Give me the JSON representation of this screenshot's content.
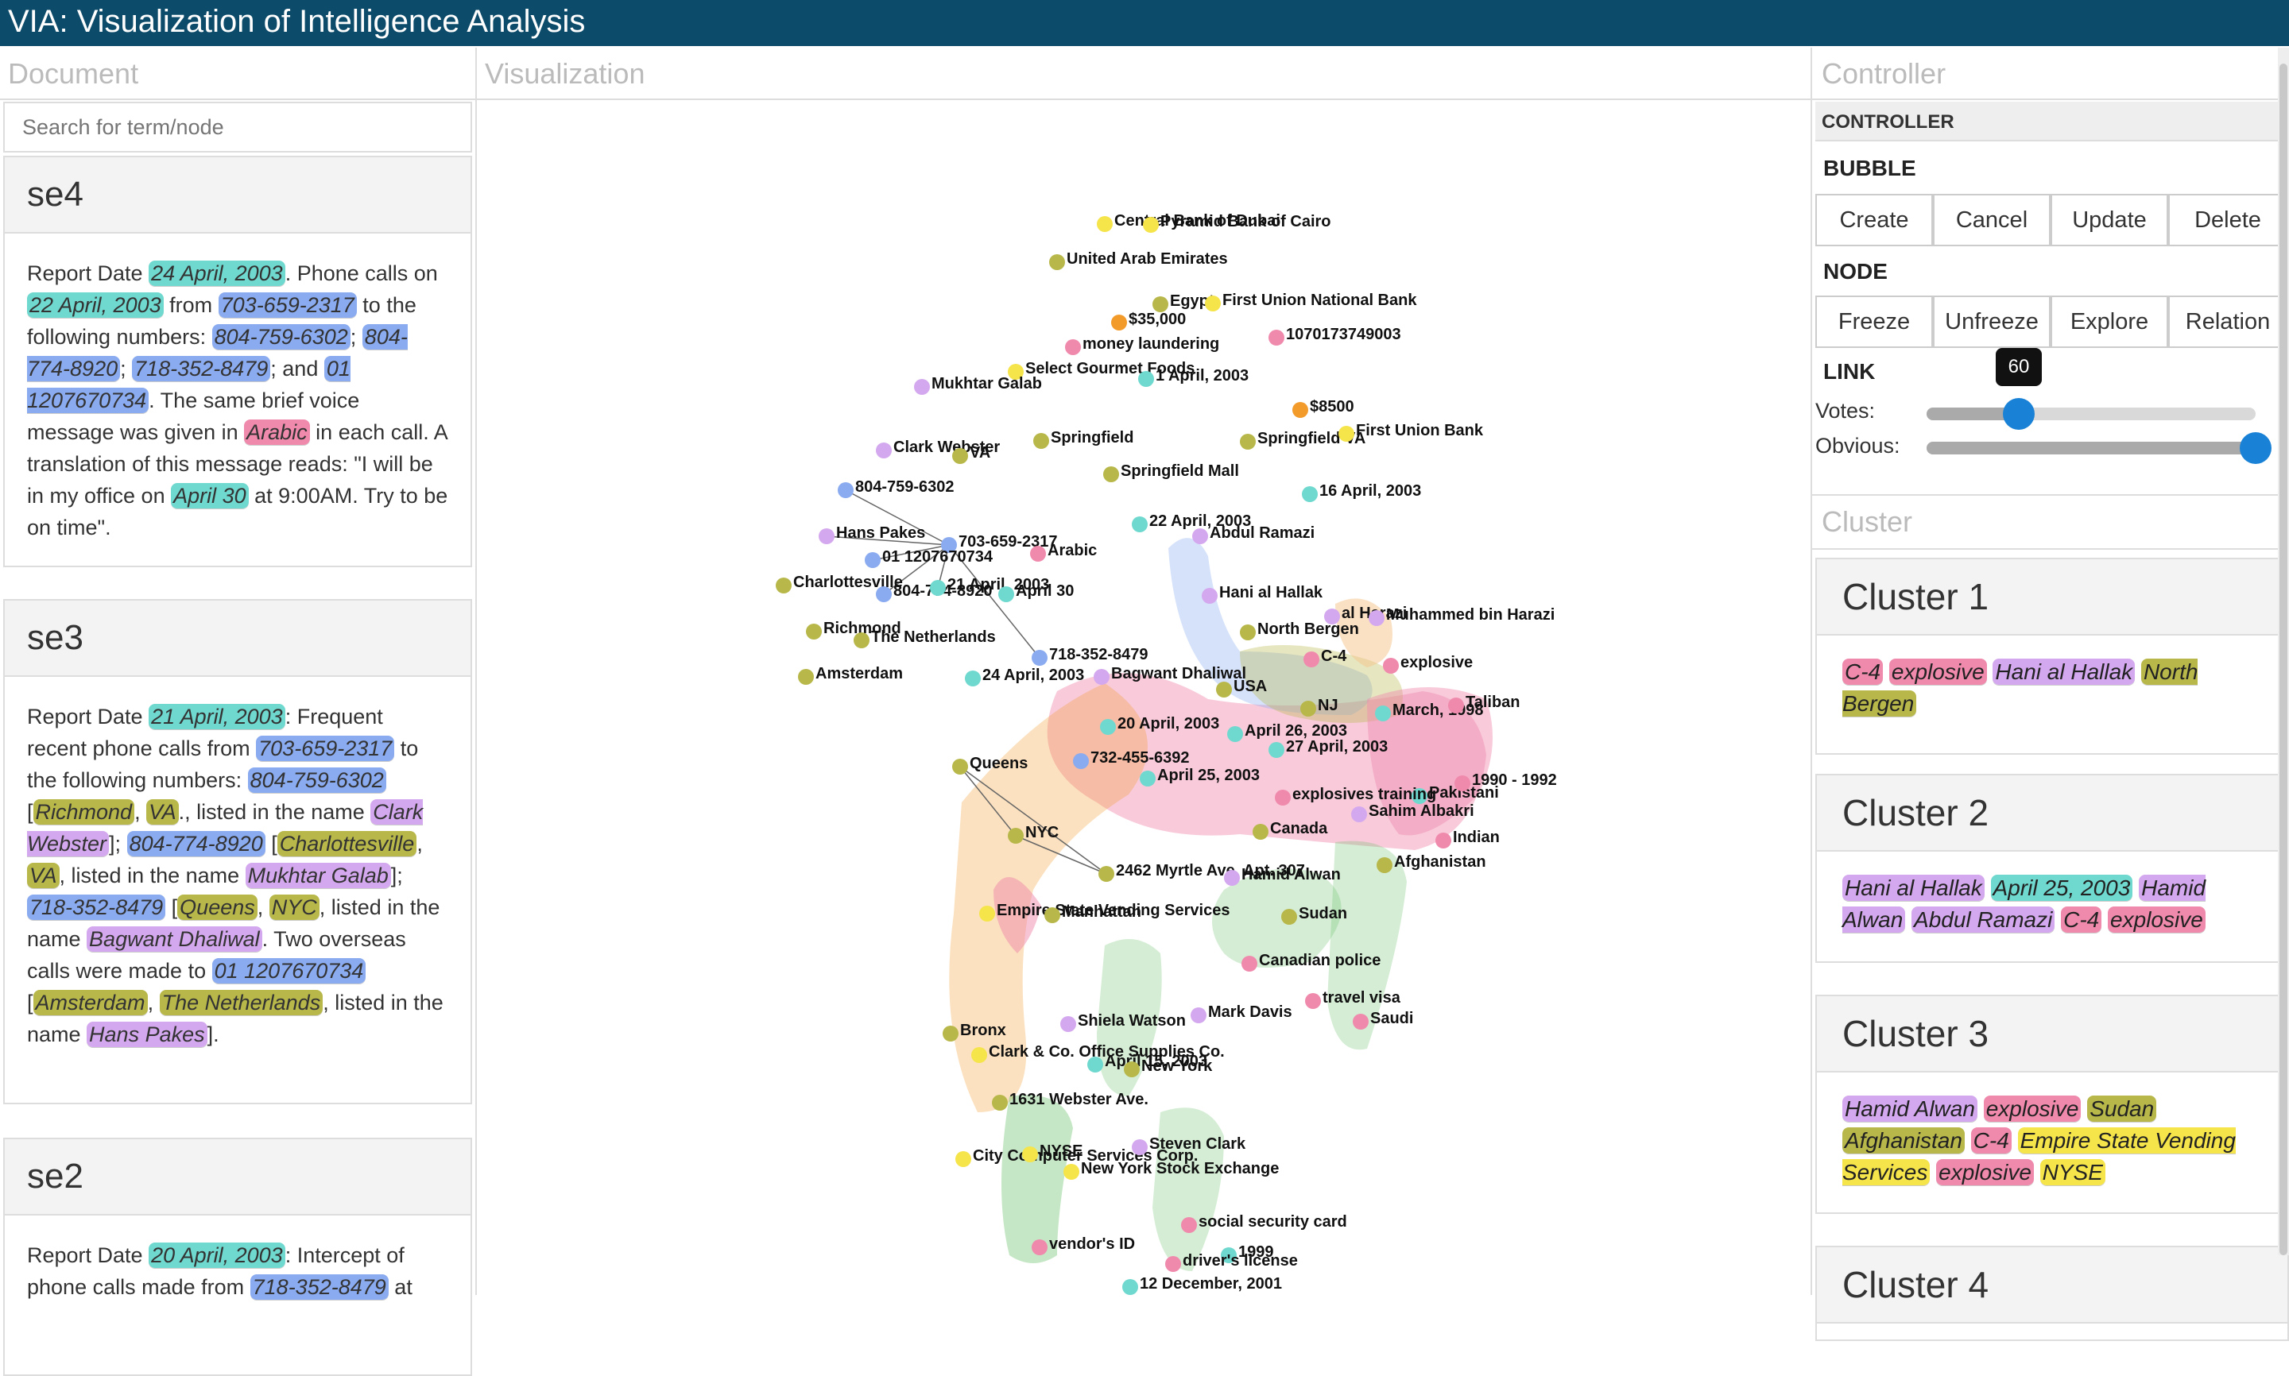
{
  "app": {
    "title": "VIA: Visualization of Intelligence Analysis"
  },
  "columns": {
    "document": "Document",
    "visualization": "Visualization",
    "controller": "Controller",
    "cluster": "Cluster"
  },
  "search": {
    "placeholder": "Search for term/node"
  },
  "documents": [
    {
      "title": "se4",
      "segments": [
        {
          "text": "Report Date "
        },
        {
          "text": "24 April, 2003",
          "type": "date"
        },
        {
          "text": ". Phone calls on "
        },
        {
          "text": "22 April, 2003",
          "type": "date"
        },
        {
          "text": " from "
        },
        {
          "text": "703-659-2317",
          "type": "phone"
        },
        {
          "text": " to the following numbers: "
        },
        {
          "text": "804-759-6302",
          "type": "phone"
        },
        {
          "text": "; "
        },
        {
          "text": "804-774-8920",
          "type": "phone"
        },
        {
          "text": "; "
        },
        {
          "text": "718-352-8479",
          "type": "phone"
        },
        {
          "text": "; and "
        },
        {
          "text": "01 1207670734",
          "type": "phone"
        },
        {
          "text": ". The same brief voice message was given in "
        },
        {
          "text": "Arabic",
          "type": "lang"
        },
        {
          "text": " in each call. A translation of this message reads: \"I will be in my office on "
        },
        {
          "text": "April 30",
          "type": "date"
        },
        {
          "text": " at 9:00AM. Try to be on time\"."
        }
      ]
    },
    {
      "title": "se3",
      "segments": [
        {
          "text": "Report Date "
        },
        {
          "text": "21 April, 2003",
          "type": "date"
        },
        {
          "text": ": Frequent recent phone calls from "
        },
        {
          "text": "703-659-2317",
          "type": "phone"
        },
        {
          "text": " to the following numbers: "
        },
        {
          "text": "804-759-6302",
          "type": "phone"
        },
        {
          "text": " ["
        },
        {
          "text": "Richmond",
          "type": "place"
        },
        {
          "text": ", "
        },
        {
          "text": "VA",
          "type": "place"
        },
        {
          "text": "., listed in the name "
        },
        {
          "text": "Clark Webster",
          "type": "person"
        },
        {
          "text": "]; "
        },
        {
          "text": "804-774-8920",
          "type": "phone"
        },
        {
          "text": " ["
        },
        {
          "text": "Charlottesville",
          "type": "place"
        },
        {
          "text": ", "
        },
        {
          "text": "VA",
          "type": "place"
        },
        {
          "text": ", listed in the name "
        },
        {
          "text": "Mukhtar Galab",
          "type": "person"
        },
        {
          "text": "]; "
        },
        {
          "text": "718-352-8479",
          "type": "phone"
        },
        {
          "text": " ["
        },
        {
          "text": "Queens",
          "type": "place"
        },
        {
          "text": ", "
        },
        {
          "text": "NYC",
          "type": "place"
        },
        {
          "text": ", listed in the name "
        },
        {
          "text": "Bagwant Dhaliwal",
          "type": "person"
        },
        {
          "text": ". Two overseas calls were made to "
        },
        {
          "text": "01 1207670734",
          "type": "phone"
        },
        {
          "text": " ["
        },
        {
          "text": "Amsterdam",
          "type": "place"
        },
        {
          "text": ", "
        },
        {
          "text": "The Netherlands",
          "type": "place"
        },
        {
          "text": ", listed in the name "
        },
        {
          "text": "Hans Pakes",
          "type": "person"
        },
        {
          "text": "]."
        }
      ]
    },
    {
      "title": "se2",
      "segments": [
        {
          "text": "Report Date "
        },
        {
          "text": "20 April, 2003",
          "type": "date"
        },
        {
          "text": ": Intercept of phone calls made from "
        },
        {
          "text": "718-352-8479",
          "type": "phone"
        },
        {
          "text": " at"
        }
      ]
    }
  ],
  "controller": {
    "header": "CONTROLLER",
    "bubble": {
      "label": "BUBBLE",
      "buttons": [
        "Create",
        "Cancel",
        "Update",
        "Delete"
      ]
    },
    "node": {
      "label": "NODE",
      "buttons": [
        "Freeze",
        "Unfreeze",
        "Explore",
        "Relation"
      ]
    },
    "link": {
      "label": "LINK",
      "votes": {
        "label": "Votes:",
        "value": 60,
        "fraction": 0.28
      },
      "obvious": {
        "label": "Obvious:",
        "fraction": 1.0
      }
    }
  },
  "clusters": [
    {
      "title": "Cluster 1",
      "terms": [
        {
          "text": "C-4",
          "type": "lang"
        },
        {
          "text": "explosive",
          "type": "lang"
        },
        {
          "text": "Hani al Hallak",
          "type": "person"
        },
        {
          "text": "North Bergen",
          "type": "place"
        }
      ]
    },
    {
      "title": "Cluster 2",
      "terms": [
        {
          "text": "Hani al Hallak",
          "type": "person"
        },
        {
          "text": "April 25, 2003",
          "type": "date"
        },
        {
          "text": "Hamid Alwan",
          "type": "person"
        },
        {
          "text": "Abdul Ramazi",
          "type": "person"
        },
        {
          "text": "C-4",
          "type": "lang"
        },
        {
          "text": "explosive",
          "type": "lang"
        }
      ]
    },
    {
      "title": "Cluster 3",
      "terms": [
        {
          "text": "Hamid Alwan",
          "type": "person"
        },
        {
          "text": "explosive",
          "type": "lang"
        },
        {
          "text": "Sudan",
          "type": "place"
        },
        {
          "text": "Afghanistan",
          "type": "place"
        },
        {
          "text": "C-4",
          "type": "lang"
        },
        {
          "text": "Empire State Vending Services",
          "type": "org"
        },
        {
          "text": "explosive",
          "type": "lang"
        },
        {
          "text": "NYSE",
          "type": "org"
        }
      ]
    },
    {
      "title": "Cluster 4",
      "terms": []
    }
  ],
  "colors": {
    "date": "#6fd9cf",
    "phone": "#8aabf0",
    "place": "#b8b84a",
    "person": "#d4a8ee",
    "lang": "#f08aac",
    "org": "#f5e44a",
    "money": "#f39b2a",
    "header": "#0d4b6a",
    "accent": "#1a82d6"
  },
  "graph": {
    "nodes": [
      {
        "label": "Central Bank of Dubai",
        "type": "org"
      },
      {
        "label": "Pyramid Bank of Cairo",
        "type": "org"
      },
      {
        "label": "United Arab Emirates",
        "type": "place"
      },
      {
        "label": "Egypt",
        "type": "place"
      },
      {
        "label": "First Union National Bank",
        "type": "org"
      },
      {
        "label": "$35,000",
        "type": "money"
      },
      {
        "label": "1070173749003",
        "type": "lang"
      },
      {
        "label": "money laundering",
        "type": "lang"
      },
      {
        "label": "Select Gourmet Foods",
        "type": "org"
      },
      {
        "label": "1 April, 2003",
        "type": "date"
      },
      {
        "label": "Mukhtar Galab",
        "type": "person"
      },
      {
        "label": "$8500",
        "type": "money"
      },
      {
        "label": "Clark Webster",
        "type": "person"
      },
      {
        "label": "VA",
        "type": "place"
      },
      {
        "label": "Springfield",
        "type": "place"
      },
      {
        "label": "Springfield VA",
        "type": "place"
      },
      {
        "label": "First Union Bank",
        "type": "org"
      },
      {
        "label": "Springfield Mall",
        "type": "place"
      },
      {
        "label": "804-759-6302",
        "type": "phone"
      },
      {
        "label": "16 April, 2003",
        "type": "date"
      },
      {
        "label": "22 April, 2003",
        "type": "date"
      },
      {
        "label": "Abdul Ramazi",
        "type": "person"
      },
      {
        "label": "Hans Pakes",
        "type": "person"
      },
      {
        "label": "703-659-2317",
        "type": "phone"
      },
      {
        "label": "01 1207670734",
        "type": "phone"
      },
      {
        "label": "Arabic",
        "type": "lang"
      },
      {
        "label": "Charlottesville",
        "type": "place"
      },
      {
        "label": "804-774-8920",
        "type": "phone"
      },
      {
        "label": "21 April, 2003",
        "type": "date"
      },
      {
        "label": "April 30",
        "type": "date"
      },
      {
        "label": "Hani al Hallak",
        "type": "person"
      },
      {
        "label": "al Harazi",
        "type": "person"
      },
      {
        "label": "Muhammed bin Harazi",
        "type": "person"
      },
      {
        "label": "Richmond",
        "type": "place"
      },
      {
        "label": "The Netherlands",
        "type": "place"
      },
      {
        "label": "North Bergen",
        "type": "place"
      },
      {
        "label": "718-352-8479",
        "type": "phone"
      },
      {
        "label": "C-4",
        "type": "lang"
      },
      {
        "label": "explosive",
        "type": "lang"
      },
      {
        "label": "Amsterdam",
        "type": "place"
      },
      {
        "label": "24 April, 2003",
        "type": "date"
      },
      {
        "label": "Bagwant Dhaliwal",
        "type": "person"
      },
      {
        "label": "USA",
        "type": "place"
      },
      {
        "label": "NJ",
        "type": "place"
      },
      {
        "label": "March, 1998",
        "type": "date"
      },
      {
        "label": "Taliban",
        "type": "lang"
      },
      {
        "label": "Pakistani",
        "type": "date"
      },
      {
        "label": "20 April, 2003",
        "type": "date"
      },
      {
        "label": "April 26, 2003",
        "type": "date"
      },
      {
        "label": "27 April, 2003",
        "type": "date"
      },
      {
        "label": "Queens",
        "type": "place"
      },
      {
        "label": "732-455-6392",
        "type": "phone"
      },
      {
        "label": "April 25, 2003",
        "type": "date"
      },
      {
        "label": "1990 - 1992",
        "type": "lang"
      },
      {
        "label": "explosives training",
        "type": "lang"
      },
      {
        "label": "Sahim Albakri",
        "type": "person"
      },
      {
        "label": "NYC",
        "type": "place"
      },
      {
        "label": "Canada",
        "type": "place"
      },
      {
        "label": "Indian",
        "type": "lang"
      },
      {
        "label": "2462 Myrtle Ave. Apt. 307",
        "type": "place"
      },
      {
        "label": "Hamid Alwan",
        "type": "person"
      },
      {
        "label": "Afghanistan",
        "type": "place"
      },
      {
        "label": "Empire State Vending Services",
        "type": "org"
      },
      {
        "label": "Manhattan",
        "type": "place"
      },
      {
        "label": "Sudan",
        "type": "place"
      },
      {
        "label": "Canadian police",
        "type": "lang"
      },
      {
        "label": "travel visa",
        "type": "lang"
      },
      {
        "label": "Saudi",
        "type": "lang"
      },
      {
        "label": "Bronx",
        "type": "place"
      },
      {
        "label": "Shiela Watson",
        "type": "person"
      },
      {
        "label": "Mark Davis",
        "type": "person"
      },
      {
        "label": "Clark & Co. Office Supplies Co.",
        "type": "org"
      },
      {
        "label": "April 15, 2003",
        "type": "date"
      },
      {
        "label": "New York",
        "type": "place"
      },
      {
        "label": "1631 Webster Ave.",
        "type": "place"
      },
      {
        "label": "City Computer Services Corp.",
        "type": "org"
      },
      {
        "label": "NYSE",
        "type": "org"
      },
      {
        "label": "Steven Clark",
        "type": "person"
      },
      {
        "label": "New York Stock Exchange",
        "type": "org"
      },
      {
        "label": "social security card",
        "type": "lang"
      },
      {
        "label": "vendor's ID",
        "type": "lang"
      },
      {
        "label": "1999",
        "type": "date"
      },
      {
        "label": "driver's license",
        "type": "lang"
      },
      {
        "label": "12 December, 2001",
        "type": "date"
      }
    ]
  }
}
